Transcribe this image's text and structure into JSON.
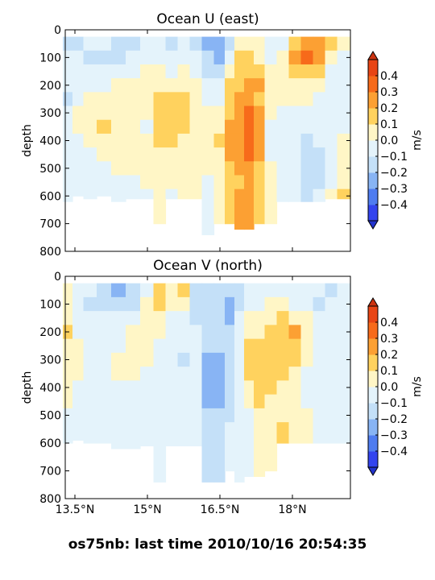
{
  "figure": {
    "suptitle": "os75nb: last time 2010/10/16 20:54:35"
  },
  "colorbar": {
    "levels": [
      -0.4,
      -0.3,
      -0.2,
      -0.1,
      0.0,
      0.1,
      0.2,
      0.3,
      0.4
    ],
    "tick_labels": [
      "−0.4",
      "−0.3",
      "−0.2",
      "−0.1",
      "0.0",
      "0.1",
      "0.2",
      "0.3",
      "0.4"
    ],
    "colors": [
      "#3344ee",
      "#4f7cf0",
      "#88b4f4",
      "#c4e0f8",
      "#e4f3fb",
      "#fff6c6",
      "#ffd25e",
      "#fca033",
      "#f76a1a",
      "#e84515"
    ],
    "under_color": "#2233cc",
    "over_color": "#cc3311",
    "label": "m/s",
    "extend": "both"
  },
  "chart_data": [
    {
      "type": "heatmap",
      "title": "Ocean U (east)",
      "xlabel": "",
      "ylabel": "depth",
      "xlim": [
        13.3,
        19.2
      ],
      "ylim": [
        800,
        0
      ],
      "yticks": [
        0,
        100,
        200,
        300,
        400,
        500,
        600,
        700,
        800
      ],
      "ytick_labels": [
        "0",
        "100",
        "200",
        "300",
        "400",
        "500",
        "600",
        "700",
        "800"
      ],
      "xticks": [
        13.5,
        15.0,
        16.5,
        18.0
      ],
      "xtick_labels": [],
      "colorbar_label": "m/s",
      "columns": [
        {
          "x": 13.35,
          "bottom": 620,
          "values": [
            -0.15,
            -0.1,
            -0.05,
            -0.08,
            -0.12,
            -0.08,
            -0.05,
            -0.1,
            -0.06,
            -0.05,
            -0.04,
            -0.04
          ]
        },
        {
          "x": 13.55,
          "bottom": 600,
          "values": [
            -0.12,
            -0.05,
            -0.08,
            -0.04,
            -0.02,
            0.03,
            0.02,
            -0.03,
            -0.05,
            -0.06,
            -0.04,
            -0.03
          ]
        },
        {
          "x": 13.8,
          "bottom": 610,
          "values": [
            -0.1,
            -0.12,
            -0.06,
            -0.02,
            0.02,
            0.05,
            0.06,
            0.04,
            -0.02,
            -0.05,
            -0.04,
            -0.03
          ]
        },
        {
          "x": 14.1,
          "bottom": 600,
          "values": [
            -0.08,
            -0.15,
            -0.1,
            -0.04,
            0.03,
            0.08,
            0.1,
            0.06,
            0.02,
            -0.03,
            -0.04,
            -0.05
          ]
        },
        {
          "x": 14.4,
          "bottom": 620,
          "values": [
            -0.15,
            -0.12,
            -0.06,
            0.02,
            0.06,
            0.08,
            0.06,
            0.05,
            0.04,
            0.02,
            -0.02,
            -0.03
          ]
        },
        {
          "x": 14.7,
          "bottom": 610,
          "values": [
            -0.18,
            -0.1,
            -0.04,
            0.04,
            0.07,
            0.05,
            0.03,
            0.02,
            0.04,
            0.03,
            -0.02,
            -0.04
          ]
        },
        {
          "x": 15.0,
          "bottom": 610,
          "values": [
            -0.1,
            -0.08,
            0.02,
            0.06,
            0.05,
            0.02,
            -0.02,
            0.03,
            0.05,
            0.02,
            0.01,
            -0.02
          ]
        },
        {
          "x": 15.25,
          "bottom": 700,
          "values": [
            -0.06,
            -0.04,
            0.05,
            0.08,
            0.1,
            0.12,
            0.14,
            0.1,
            0.06,
            0.04,
            0.02,
            0.03
          ]
        },
        {
          "x": 15.5,
          "bottom": 610,
          "values": [
            -0.12,
            -0.1,
            -0.06,
            0.04,
            0.12,
            0.16,
            0.18,
            0.12,
            0.08,
            0.06,
            0.02,
            -0.02
          ]
        },
        {
          "x": 15.75,
          "bottom": 610,
          "values": [
            -0.08,
            -0.04,
            0.02,
            0.06,
            0.1,
            0.12,
            0.1,
            0.08,
            0.05,
            0.03,
            0.02,
            0.02
          ]
        },
        {
          "x": 16.0,
          "bottom": 610,
          "values": [
            -0.15,
            -0.1,
            -0.05,
            0.02,
            0.05,
            0.04,
            0.02,
            0.03,
            0.06,
            0.04,
            0.02,
            0.01
          ]
        },
        {
          "x": 16.25,
          "bottom": 740,
          "values": [
            -0.25,
            -0.2,
            -0.12,
            -0.06,
            -0.03,
            0.02,
            0.04,
            0.06,
            0.04,
            0.02,
            -0.02,
            -0.05
          ]
        },
        {
          "x": 16.5,
          "bottom": 700,
          "values": [
            -0.3,
            -0.25,
            -0.15,
            -0.08,
            -0.02,
            0.05,
            0.08,
            0.1,
            0.08,
            0.05,
            0.03,
            0.05
          ]
        },
        {
          "x": 16.7,
          "bottom": 700,
          "values": [
            -0.12,
            -0.05,
            0.06,
            0.12,
            0.15,
            0.18,
            0.2,
            0.22,
            0.2,
            0.15,
            0.1,
            0.1
          ]
        },
        {
          "x": 16.9,
          "bottom": 720,
          "values": [
            0.05,
            0.1,
            0.15,
            0.18,
            0.22,
            0.25,
            0.26,
            0.24,
            0.22,
            0.2,
            0.18,
            0.2
          ]
        },
        {
          "x": 17.1,
          "bottom": 720,
          "values": [
            0.08,
            0.12,
            0.18,
            0.2,
            0.25,
            0.3,
            0.32,
            0.3,
            0.32,
            0.28,
            0.25,
            0.22
          ]
        },
        {
          "x": 17.3,
          "bottom": 700,
          "values": [
            0.05,
            0.08,
            0.15,
            0.2,
            0.18,
            0.22,
            0.25,
            0.28,
            0.22,
            0.18,
            0.15,
            0.12
          ]
        },
        {
          "x": 17.55,
          "bottom": 700,
          "values": [
            -0.08,
            -0.04,
            0.03,
            0.06,
            0.04,
            0.02,
            -0.02,
            -0.04,
            -0.03,
            0.02,
            0.04,
            0.03
          ]
        },
        {
          "x": 17.8,
          "bottom": 620,
          "values": [
            -0.05,
            0.05,
            0.08,
            0.06,
            0.02,
            -0.04,
            -0.08,
            -0.1,
            -0.06,
            -0.04,
            -0.02,
            -0.02
          ]
        },
        {
          "x": 18.05,
          "bottom": 620,
          "values": [
            0.1,
            0.2,
            0.15,
            0.06,
            0.02,
            -0.02,
            -0.05,
            -0.08,
            -0.1,
            -0.08,
            -0.05,
            -0.04
          ]
        },
        {
          "x": 18.3,
          "bottom": 620,
          "values": [
            0.22,
            0.32,
            0.18,
            0.08,
            0.02,
            -0.04,
            -0.1,
            -0.15,
            -0.18,
            -0.2,
            -0.15,
            -0.12
          ]
        },
        {
          "x": 18.55,
          "bottom": 620,
          "values": [
            0.25,
            0.2,
            0.1,
            0.05,
            -0.02,
            -0.05,
            -0.08,
            -0.1,
            -0.15,
            -0.18,
            -0.12,
            -0.1
          ]
        },
        {
          "x": 18.8,
          "bottom": 610,
          "values": [
            0.1,
            0.05,
            -0.02,
            -0.05,
            -0.08,
            -0.1,
            -0.06,
            -0.04,
            -0.05,
            -0.06,
            -0.04,
            0.02
          ]
        },
        {
          "x": 19.05,
          "bottom": 610,
          "values": [
            0.02,
            -0.05,
            -0.1,
            -0.08,
            -0.06,
            -0.04,
            -0.02,
            0.02,
            0.04,
            0.06,
            0.08,
            0.12
          ]
        }
      ]
    },
    {
      "type": "heatmap",
      "title": "Ocean V (north)",
      "xlabel": "",
      "ylabel": "depth",
      "xlim": [
        13.3,
        19.2
      ],
      "ylim": [
        800,
        0
      ],
      "yticks": [
        0,
        100,
        200,
        300,
        400,
        500,
        600,
        700,
        800
      ],
      "ytick_labels": [
        "0",
        "100",
        "200",
        "300",
        "400",
        "500",
        "600",
        "700",
        "800"
      ],
      "xticks": [
        13.5,
        15.0,
        16.5,
        18.0
      ],
      "xtick_labels": [
        "13.5°N",
        "15°N",
        "16.5°N",
        "18°N"
      ],
      "colorbar_label": "m/s",
      "columns": [
        {
          "x": 13.35,
          "bottom": 600,
          "values": [
            0.02,
            0.04,
            0.06,
            0.1,
            0.08,
            0.05,
            0.03,
            0.02,
            0.01,
            -0.02,
            -0.04,
            -0.03
          ]
        },
        {
          "x": 13.55,
          "bottom": 590,
          "values": [
            -0.05,
            -0.08,
            -0.06,
            -0.02,
            0.02,
            0.03,
            0.02,
            -0.03,
            -0.05,
            -0.04,
            -0.03,
            -0.02
          ]
        },
        {
          "x": 13.8,
          "bottom": 600,
          "values": [
            -0.1,
            -0.12,
            -0.08,
            -0.05,
            -0.06,
            -0.08,
            -0.1,
            -0.06,
            -0.04,
            -0.03,
            -0.02,
            -0.02
          ]
        },
        {
          "x": 14.1,
          "bottom": 600,
          "values": [
            -0.2,
            -0.15,
            -0.1,
            -0.06,
            -0.04,
            -0.05,
            -0.06,
            -0.08,
            -0.05,
            -0.04,
            -0.03,
            -0.02
          ]
        },
        {
          "x": 14.4,
          "bottom": 620,
          "values": [
            -0.25,
            -0.18,
            -0.1,
            -0.05,
            -0.02,
            0.02,
            0.03,
            -0.02,
            -0.05,
            -0.06,
            -0.05,
            -0.04
          ]
        },
        {
          "x": 14.7,
          "bottom": 620,
          "values": [
            -0.2,
            -0.12,
            -0.06,
            0.02,
            0.05,
            0.04,
            0.02,
            -0.02,
            -0.04,
            -0.05,
            -0.06,
            -0.05
          ]
        },
        {
          "x": 15.0,
          "bottom": 610,
          "values": [
            -0.05,
            0.03,
            0.06,
            0.05,
            0.03,
            0.02,
            -0.02,
            -0.04,
            -0.06,
            -0.05,
            -0.04,
            -0.03
          ]
        },
        {
          "x": 15.25,
          "bottom": 740,
          "values": [
            0.18,
            0.12,
            0.06,
            0.02,
            -0.02,
            -0.04,
            -0.06,
            -0.08,
            -0.06,
            -0.05,
            -0.04,
            -0.03
          ]
        },
        {
          "x": 15.5,
          "bottom": 610,
          "values": [
            0.05,
            0.02,
            -0.02,
            -0.05,
            -0.08,
            -0.1,
            -0.08,
            -0.06,
            -0.04,
            -0.03,
            -0.02,
            -0.02
          ]
        },
        {
          "x": 15.75,
          "bottom": 610,
          "values": [
            0.1,
            0.04,
            -0.04,
            -0.08,
            -0.1,
            -0.12,
            -0.1,
            -0.06,
            -0.04,
            -0.02,
            -0.02,
            -0.02
          ]
        },
        {
          "x": 16.0,
          "bottom": 610,
          "values": [
            -0.12,
            -0.15,
            -0.12,
            -0.08,
            -0.06,
            -0.05,
            -0.04,
            -0.06,
            -0.08,
            -0.1,
            -0.08,
            -0.06
          ]
        },
        {
          "x": 16.25,
          "bottom": 740,
          "values": [
            -0.18,
            -0.2,
            -0.15,
            -0.12,
            -0.15,
            -0.22,
            -0.28,
            -0.26,
            -0.22,
            -0.18,
            -0.15,
            -0.12
          ]
        },
        {
          "x": 16.5,
          "bottom": 740,
          "values": [
            -0.15,
            -0.18,
            -0.2,
            -0.18,
            -0.2,
            -0.25,
            -0.3,
            -0.28,
            -0.25,
            -0.2,
            -0.18,
            -0.15
          ]
        },
        {
          "x": 16.7,
          "bottom": 700,
          "values": [
            -0.2,
            -0.25,
            -0.22,
            -0.15,
            -0.12,
            -0.15,
            -0.2,
            -0.18,
            -0.15,
            -0.12,
            -0.1,
            -0.08
          ]
        },
        {
          "x": 16.9,
          "bottom": 740,
          "values": [
            -0.12,
            -0.15,
            -0.1,
            -0.05,
            -0.02,
            -0.04,
            -0.08,
            -0.1,
            -0.08,
            -0.06,
            -0.05,
            -0.04
          ]
        },
        {
          "x": 17.1,
          "bottom": 720,
          "values": [
            -0.05,
            -0.02,
            0.03,
            0.06,
            0.1,
            0.12,
            0.1,
            0.06,
            0.02,
            -0.02,
            -0.04,
            -0.03
          ]
        },
        {
          "x": 17.3,
          "bottom": 720,
          "values": [
            -0.08,
            -0.04,
            0.02,
            0.08,
            0.12,
            0.15,
            0.18,
            0.14,
            0.1,
            0.06,
            0.04,
            0.02
          ]
        },
        {
          "x": 17.55,
          "bottom": 700,
          "values": [
            -0.04,
            0.02,
            0.05,
            0.1,
            0.12,
            0.14,
            0.12,
            0.1,
            0.08,
            0.06,
            0.05,
            0.03
          ]
        },
        {
          "x": 17.8,
          "bottom": 600,
          "values": [
            -0.03,
            0.03,
            0.1,
            0.18,
            0.15,
            0.1,
            0.12,
            0.08,
            0.06,
            0.05,
            0.1,
            0.12
          ]
        },
        {
          "x": 18.05,
          "bottom": 600,
          "values": [
            -0.05,
            -0.02,
            0.08,
            0.2,
            0.15,
            0.1,
            0.06,
            0.04,
            0.02,
            0.04,
            0.06,
            0.05
          ]
        },
        {
          "x": 18.3,
          "bottom": 600,
          "values": [
            -0.08,
            -0.05,
            0.02,
            0.06,
            0.04,
            0.02,
            -0.02,
            -0.04,
            -0.02,
            0.02,
            0.03,
            0.02
          ]
        },
        {
          "x": 18.55,
          "bottom": 600,
          "values": [
            -0.1,
            -0.12,
            -0.06,
            -0.04,
            -0.05,
            -0.06,
            -0.08,
            -0.1,
            -0.08,
            -0.05,
            -0.04,
            -0.03
          ]
        },
        {
          "x": 18.8,
          "bottom": 600,
          "values": [
            -0.12,
            -0.1,
            -0.08,
            -0.06,
            -0.05,
            -0.04,
            -0.06,
            -0.08,
            -0.1,
            -0.08,
            -0.06,
            -0.05
          ]
        },
        {
          "x": 19.05,
          "bottom": 600,
          "values": [
            -0.04,
            -0.06,
            -0.05,
            -0.04,
            -0.03,
            -0.02,
            -0.04,
            -0.06,
            -0.05,
            -0.04,
            -0.03,
            -0.05
          ]
        }
      ]
    }
  ]
}
